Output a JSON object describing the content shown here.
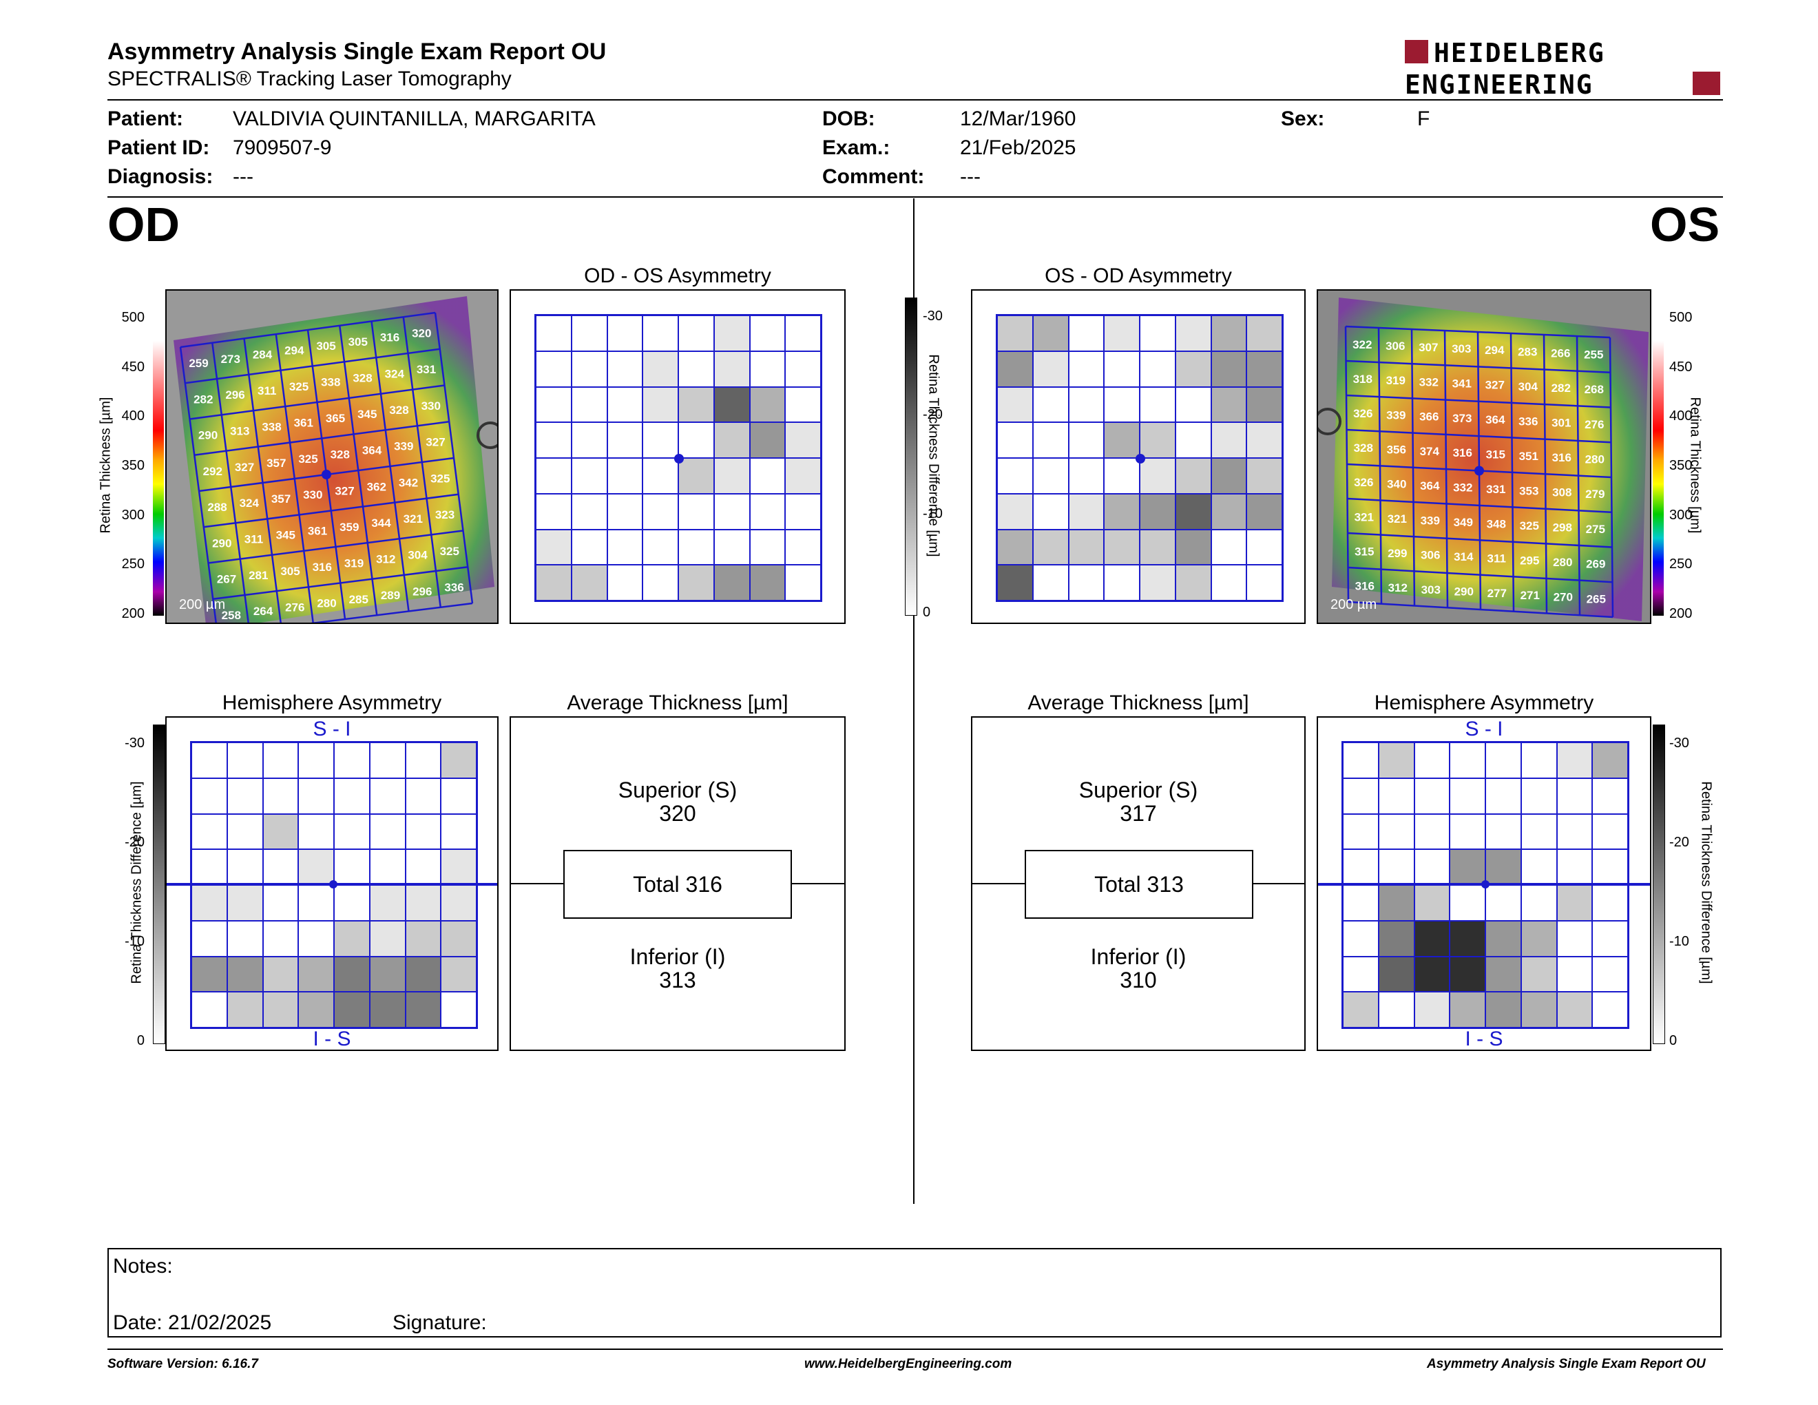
{
  "header": {
    "title": "Asymmetry Analysis Single Exam Report OU",
    "subtitle": "SPECTRALIS® Tracking Laser Tomography",
    "logo_line1": "HEIDELBERG",
    "logo_line2": "ENGINEERING"
  },
  "patient": {
    "patient_label": "Patient:",
    "patient_value": "VALDIVIA QUINTANILLA, MARGARITA",
    "id_label": "Patient ID:",
    "id_value": "7909507-9",
    "diag_label": "Diagnosis:",
    "diag_value": "---",
    "dob_label": "DOB:",
    "dob_value": "12/Mar/1960",
    "exam_label": "Exam.:",
    "exam_value": "21/Feb/2025",
    "comment_label": "Comment:",
    "comment_value": "---",
    "sex_label": "Sex:",
    "sex_value": "F"
  },
  "od": {
    "label": "OD",
    "asym_title": "OD - OS Asymmetry",
    "hemi_title": "Hemisphere Asymmetry",
    "avg_title": "Average Thickness [µm]",
    "superior_label": "Superior (S)",
    "superior_value": "320",
    "total_label": "Total 316",
    "inferior_label": "Inferior (I)",
    "inferior_value": "313",
    "hemi_top": "S - I",
    "hemi_bottom": "I - S",
    "scale_label": "200 µm",
    "thickness": [
      [
        "259",
        "273",
        "284",
        "294",
        "305",
        "305",
        "316",
        "320"
      ],
      [
        "282",
        "296",
        "311",
        "325",
        "338",
        "328",
        "324",
        "331"
      ],
      [
        "290",
        "313",
        "338",
        "361",
        "365",
        "345",
        "328",
        "330"
      ],
      [
        "292",
        "327",
        "357",
        "325",
        "328",
        "364",
        "339",
        "327"
      ],
      [
        "288",
        "324",
        "357",
        "330",
        "327",
        "362",
        "342",
        "325"
      ],
      [
        "290",
        "311",
        "345",
        "361",
        "359",
        "344",
        "321",
        "323"
      ],
      [
        "267",
        "281",
        "305",
        "316",
        "319",
        "312",
        "304",
        "325"
      ],
      [
        "258",
        "264",
        "276",
        "280",
        "285",
        "289",
        "296",
        "336"
      ]
    ],
    "asym_grid": [
      [
        0,
        0,
        0,
        0,
        0,
        1,
        0,
        0
      ],
      [
        0,
        0,
        0,
        1,
        0,
        1,
        0,
        0
      ],
      [
        0,
        0,
        0,
        1,
        2,
        6,
        3,
        0
      ],
      [
        0,
        0,
        0,
        0,
        0,
        2,
        4,
        1
      ],
      [
        0,
        0,
        0,
        0,
        2,
        1,
        0,
        1
      ],
      [
        0,
        0,
        0,
        0,
        0,
        0,
        0,
        0
      ],
      [
        1,
        0,
        0,
        0,
        0,
        0,
        0,
        0
      ],
      [
        2,
        2,
        0,
        0,
        2,
        4,
        4,
        0
      ]
    ],
    "hemi_grid": [
      [
        0,
        0,
        0,
        0,
        0,
        0,
        0,
        2
      ],
      [
        0,
        0,
        0,
        0,
        0,
        0,
        0,
        0
      ],
      [
        0,
        0,
        2,
        0,
        0,
        0,
        0,
        0
      ],
      [
        0,
        0,
        0,
        1,
        0,
        0,
        0,
        1
      ],
      [
        1,
        1,
        0,
        0,
        0,
        1,
        1,
        1
      ],
      [
        0,
        0,
        0,
        0,
        2,
        1,
        2,
        2
      ],
      [
        4,
        4,
        2,
        3,
        5,
        4,
        5,
        2
      ],
      [
        0,
        2,
        2,
        3,
        5,
        5,
        5,
        0
      ]
    ]
  },
  "os": {
    "label": "OS",
    "asym_title": "OS - OD Asymmetry",
    "hemi_title": "Hemisphere Asymmetry",
    "avg_title": "Average Thickness [µm]",
    "superior_label": "Superior (S)",
    "superior_value": "317",
    "total_label": "Total 313",
    "inferior_label": "Inferior (I)",
    "inferior_value": "310",
    "hemi_top": "S - I",
    "hemi_bottom": "I - S",
    "scale_label": "200 µm",
    "thickness": [
      [
        "322",
        "306",
        "307",
        "303",
        "294",
        "283",
        "266",
        "255"
      ],
      [
        "318",
        "319",
        "332",
        "341",
        "327",
        "304",
        "282",
        "268"
      ],
      [
        "326",
        "339",
        "366",
        "373",
        "364",
        "336",
        "301",
        "276"
      ],
      [
        "328",
        "356",
        "374",
        "316",
        "315",
        "351",
        "316",
        "280"
      ],
      [
        "326",
        "340",
        "364",
        "332",
        "331",
        "353",
        "308",
        "279"
      ],
      [
        "321",
        "321",
        "339",
        "349",
        "348",
        "325",
        "298",
        "275"
      ],
      [
        "315",
        "299",
        "306",
        "314",
        "311",
        "295",
        "280",
        "269"
      ],
      [
        "316",
        "312",
        "303",
        "290",
        "277",
        "271",
        "270",
        "265"
      ]
    ],
    "asym_grid": [
      [
        2,
        3,
        0,
        1,
        0,
        1,
        3,
        2
      ],
      [
        4,
        1,
        0,
        0,
        0,
        2,
        4,
        4
      ],
      [
        1,
        0,
        0,
        0,
        0,
        0,
        3,
        4
      ],
      [
        0,
        0,
        0,
        3,
        2,
        0,
        1,
        1
      ],
      [
        0,
        0,
        0,
        0,
        1,
        2,
        4,
        2
      ],
      [
        1,
        0,
        1,
        3,
        4,
        6,
        3,
        4
      ],
      [
        3,
        2,
        2,
        2,
        2,
        4,
        0,
        0
      ],
      [
        6,
        0,
        0,
        0,
        1,
        2,
        0,
        0
      ]
    ],
    "hemi_grid": [
      [
        0,
        2,
        0,
        0,
        0,
        0,
        1,
        3
      ],
      [
        0,
        0,
        0,
        0,
        0,
        0,
        0,
        0
      ],
      [
        0,
        0,
        0,
        0,
        0,
        0,
        0,
        0
      ],
      [
        0,
        0,
        0,
        4,
        4,
        0,
        0,
        0
      ],
      [
        0,
        4,
        2,
        0,
        0,
        0,
        2,
        0
      ],
      [
        0,
        5,
        8,
        8,
        4,
        3,
        0,
        0
      ],
      [
        0,
        6,
        8,
        8,
        4,
        2,
        0,
        0
      ],
      [
        2,
        0,
        1,
        3,
        4,
        3,
        2,
        0
      ]
    ]
  },
  "scales": {
    "thickness_label": "Retina Thickness [µm]",
    "thickness_ticks": [
      "500",
      "450",
      "400",
      "350",
      "300",
      "250",
      "200"
    ],
    "diff_label": "Retina Thickness Difference [µm]",
    "diff_ticks": [
      "-30",
      "-20",
      "-10",
      "0"
    ]
  },
  "notes": {
    "notes_label": "Notes:",
    "date_label": "Date: 21/02/2025",
    "signature_label": "Signature:"
  },
  "footer": {
    "version": "Software Version: 6.16.7",
    "website": "www.HeidelbergEngineering.com",
    "report": "Asymmetry Analysis Single Exam Report OU"
  },
  "colors": {
    "grid_blue": "#1a1acc",
    "logo_red": "#9b1b30"
  }
}
